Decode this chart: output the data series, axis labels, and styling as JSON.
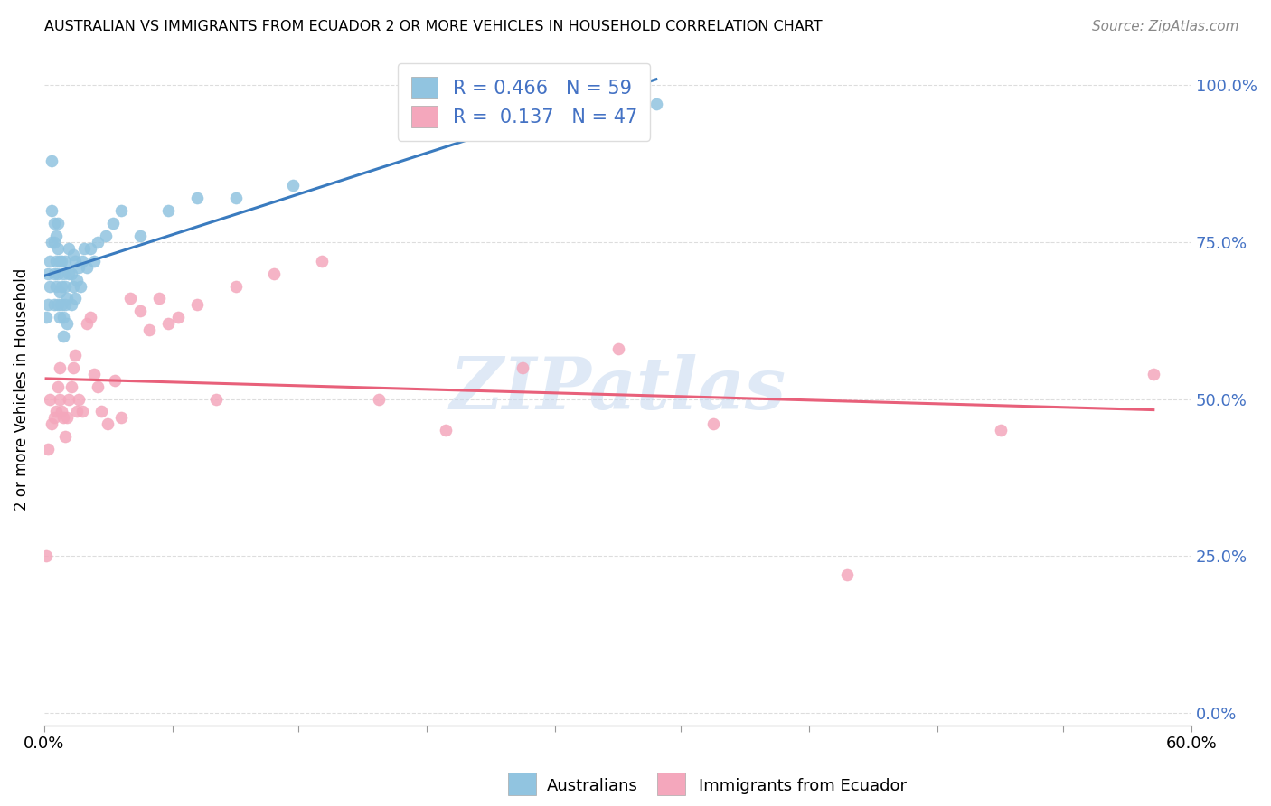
{
  "title": "AUSTRALIAN VS IMMIGRANTS FROM ECUADOR 2 OR MORE VEHICLES IN HOUSEHOLD CORRELATION CHART",
  "source": "Source: ZipAtlas.com",
  "ylabel": "2 or more Vehicles in Household",
  "xlim": [
    0.0,
    0.6
  ],
  "ylim": [
    -0.02,
    1.05
  ],
  "ytick_vals": [
    0.0,
    0.25,
    0.5,
    0.75,
    1.0
  ],
  "ytick_labels_right": [
    "0.0%",
    "25.0%",
    "50.0%",
    "75.0%",
    "100.0%"
  ],
  "xtick_vals": [
    0.0,
    0.067,
    0.133,
    0.2,
    0.267,
    0.333,
    0.4,
    0.467,
    0.533,
    0.6
  ],
  "xtick_labels": [
    "0.0%",
    "",
    "",
    "",
    "",
    "",
    "",
    "",
    "",
    "60.0%"
  ],
  "color_australian": "#91c4e0",
  "color_ecuador": "#f4a7bc",
  "color_line_australian": "#3a7bbf",
  "color_line_ecuador": "#e8607a",
  "watermark": "ZIPatlas",
  "legend_label1": "R = 0.466   N = 59",
  "legend_label2": "R =  0.137   N = 47",
  "aus_R": 0.466,
  "ecu_R": 0.137,
  "aus_N": 59,
  "ecu_N": 47,
  "australians_x": [
    0.001,
    0.002,
    0.002,
    0.003,
    0.003,
    0.004,
    0.004,
    0.004,
    0.005,
    0.005,
    0.005,
    0.005,
    0.006,
    0.006,
    0.006,
    0.007,
    0.007,
    0.007,
    0.007,
    0.008,
    0.008,
    0.008,
    0.009,
    0.009,
    0.009,
    0.01,
    0.01,
    0.01,
    0.011,
    0.011,
    0.011,
    0.012,
    0.012,
    0.013,
    0.013,
    0.014,
    0.014,
    0.015,
    0.015,
    0.016,
    0.016,
    0.017,
    0.018,
    0.019,
    0.02,
    0.021,
    0.022,
    0.024,
    0.026,
    0.028,
    0.032,
    0.036,
    0.04,
    0.05,
    0.065,
    0.08,
    0.1,
    0.13,
    0.32
  ],
  "australians_y": [
    0.63,
    0.7,
    0.65,
    0.72,
    0.68,
    0.75,
    0.8,
    0.88,
    0.65,
    0.7,
    0.75,
    0.78,
    0.68,
    0.72,
    0.76,
    0.65,
    0.7,
    0.74,
    0.78,
    0.63,
    0.67,
    0.72,
    0.65,
    0.68,
    0.72,
    0.6,
    0.63,
    0.7,
    0.65,
    0.68,
    0.72,
    0.62,
    0.66,
    0.7,
    0.74,
    0.65,
    0.7,
    0.68,
    0.73,
    0.66,
    0.72,
    0.69,
    0.71,
    0.68,
    0.72,
    0.74,
    0.71,
    0.74,
    0.72,
    0.75,
    0.76,
    0.78,
    0.8,
    0.76,
    0.8,
    0.82,
    0.82,
    0.84,
    0.97
  ],
  "ecuador_x": [
    0.001,
    0.002,
    0.003,
    0.004,
    0.005,
    0.006,
    0.007,
    0.008,
    0.008,
    0.009,
    0.01,
    0.011,
    0.012,
    0.013,
    0.014,
    0.015,
    0.016,
    0.017,
    0.018,
    0.02,
    0.022,
    0.024,
    0.026,
    0.028,
    0.03,
    0.033,
    0.037,
    0.04,
    0.045,
    0.05,
    0.055,
    0.06,
    0.065,
    0.07,
    0.08,
    0.09,
    0.1,
    0.12,
    0.145,
    0.175,
    0.21,
    0.25,
    0.3,
    0.35,
    0.42,
    0.5,
    0.58
  ],
  "ecuador_y": [
    0.25,
    0.42,
    0.5,
    0.46,
    0.47,
    0.48,
    0.52,
    0.5,
    0.55,
    0.48,
    0.47,
    0.44,
    0.47,
    0.5,
    0.52,
    0.55,
    0.57,
    0.48,
    0.5,
    0.48,
    0.62,
    0.63,
    0.54,
    0.52,
    0.48,
    0.46,
    0.53,
    0.47,
    0.66,
    0.64,
    0.61,
    0.66,
    0.62,
    0.63,
    0.65,
    0.5,
    0.68,
    0.7,
    0.72,
    0.5,
    0.45,
    0.55,
    0.58,
    0.46,
    0.22,
    0.45,
    0.54
  ]
}
